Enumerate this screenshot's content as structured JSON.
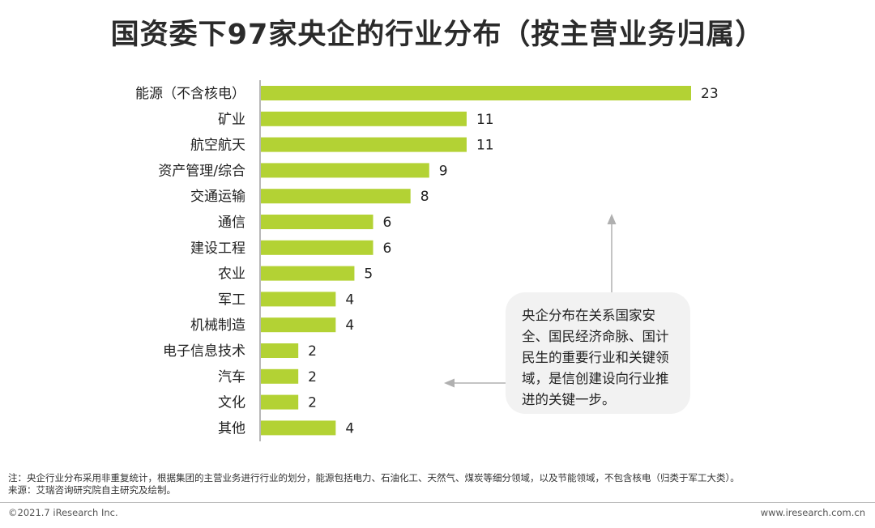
{
  "title": "国资委下97家央企的行业分布（按主营业务归属）",
  "chart_data": {
    "type": "bar",
    "orientation": "horizontal",
    "title": "国资委下97家央企的行业分布（按主营业务归属）",
    "categories": [
      "能源（不含核电）",
      "矿业",
      "航空航天",
      "资产管理/综合",
      "交通运输",
      "通信",
      "建设工程",
      "农业",
      "军工",
      "机械制造",
      "电子信息技术",
      "汽车",
      "文化",
      "其他"
    ],
    "values": [
      23,
      11,
      11,
      9,
      8,
      6,
      6,
      5,
      4,
      4,
      2,
      2,
      2,
      4
    ],
    "xlim": [
      0,
      23
    ],
    "grid": false,
    "legend": "none",
    "bar_color": "#b3d234"
  },
  "annotation": "央企分布在关系国家安全、国民经济命脉、国计民生的重要行业和关键领域，是信创建设向行业推进的关键一步。",
  "footer": {
    "note": "注：央企行业分布采用非重复统计，根据集团的主营业务进行行业的划分，能源包括电力、石油化工、天然气、煤炭等细分领域，以及节能领域，不包含核电（归类于军工大类）。",
    "source": "来源：艾瑞咨询研究院自主研究及绘制。",
    "copyright": "©2021.7 iResearch Inc.",
    "website": "www.iresearch.com.cn"
  },
  "colors": {
    "bar": "#b3d234",
    "axis": "#888888",
    "arrow": "#b0b0b0",
    "callout_bg": "#f2f2f2"
  }
}
